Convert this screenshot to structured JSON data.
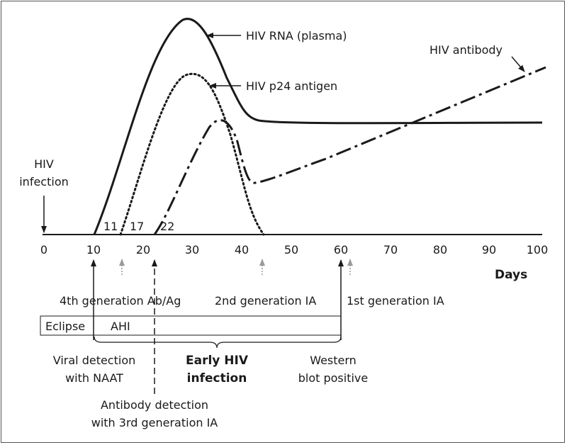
{
  "colors": {
    "ink": "#1a1a1a",
    "grey_arrow": "#9a9a9a"
  },
  "curves": {
    "rna_label": "HIV RNA (plasma)",
    "p24_label": "HIV p24 antigen",
    "antibody_label": "HIV antibody"
  },
  "infection_marker": {
    "line1": "HIV",
    "line2": "infection"
  },
  "axis": {
    "ticks": [
      "0",
      "10",
      "20",
      "30",
      "40",
      "50",
      "60",
      "70",
      "80",
      "90",
      "100"
    ],
    "unit_label": "Days"
  },
  "onset_days": [
    "11",
    "17",
    "22"
  ],
  "tests": {
    "fourth_gen": "4th generation Ab/Ag",
    "second_gen": "2nd generation IA",
    "first_gen": "1st generation IA"
  },
  "phases": {
    "eclipse": "Eclipse",
    "ahi": "AHI"
  },
  "events": {
    "naat_line1": "Viral detection",
    "naat_line2": "with NAAT",
    "early_line1": "Early HIV",
    "early_line2": "infection",
    "western_line1": "Western",
    "western_line2": "blot positive",
    "third_gen_line1": "Antibody detection",
    "third_gen_line2": "with 3rd generation IA"
  }
}
